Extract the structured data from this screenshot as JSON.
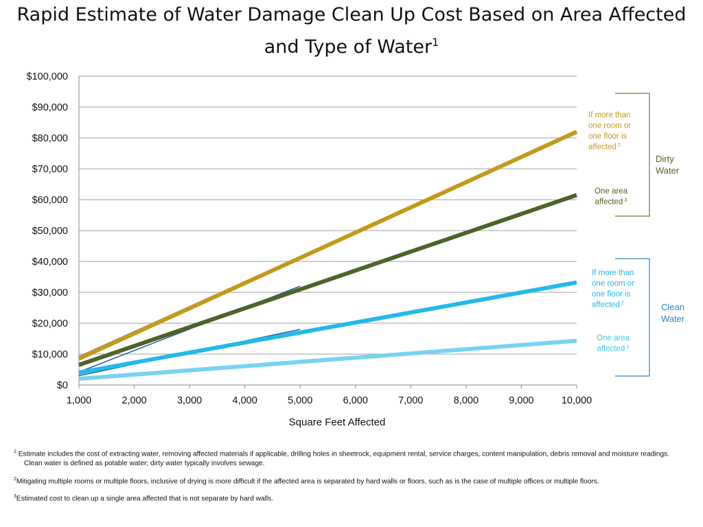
{
  "title": {
    "text": "Rapid Estimate of Water Damage Clean Up Cost Based on Area Affected and Type of Water",
    "sup": "1"
  },
  "annotations": {
    "dirty_multi": {
      "text": [
        "If more than",
        "one room or",
        "one floor is",
        "affected"
      ],
      "sup": "2"
    },
    "dirty_single": {
      "text": [
        "One area",
        "affected"
      ],
      "sup": "3"
    },
    "clean_multi": {
      "text": [
        "If more than",
        "one room or",
        "one floor is",
        "affected"
      ],
      "sup": "2"
    },
    "clean_single": {
      "text": [
        "One area",
        "affected"
      ],
      "sup": "3"
    },
    "dirty_group": [
      "Dirty",
      "Water"
    ],
    "clean_group": [
      "Clean",
      "Water"
    ]
  },
  "footnotes": [
    {
      "sup": "1",
      "lines": [
        " Estimate includes the cost of extracting water, removing affected materials if applicable, drilling holes in sheetrock, equipment rental, service charges, content manipulation, debris removal and moisture readings.",
        "Clean water is defined as potable water; dirty water  typically involves sewage."
      ]
    },
    {
      "sup": "2",
      "lines": [
        "Mitigating multiple rooms or multiple floors, inclusive of drying is more difficult if the affected area is separated by hard walls or floors, such as is  the case of multiple offices or multiple floors."
      ]
    },
    {
      "sup": "3",
      "lines": [
        "Estimated cost to clean up a single area affected that is not separate by hard walls."
      ]
    }
  ],
  "colors": {
    "dirty_multi": "#c49a1c",
    "dirty_single": "#4f6228",
    "clean_multi": "#23b9ea",
    "clean_single": "#78d3f1",
    "dark_blue": "#1f5fa8",
    "grey": "#8f8f8f",
    "dirty_bracket": "#6b7d33",
    "clean_bracket": "#2e86c8",
    "clean_single_text": "#3cc6e8"
  },
  "chart_data": {
    "type": "line",
    "title": "",
    "xlabel": "Square Feet Affected",
    "ylabel": "",
    "xlim": [
      1000,
      10000
    ],
    "ylim": [
      0,
      100000
    ],
    "x_ticks": [
      1000,
      2000,
      3000,
      4000,
      5000,
      6000,
      7000,
      8000,
      9000,
      10000
    ],
    "x_tick_labels": [
      "1,000",
      "2,000",
      "3,000",
      "4,000",
      "5,000",
      "6,000",
      "7,000",
      "8,000",
      "9,000",
      "10,000"
    ],
    "y_ticks": [
      0,
      10000,
      20000,
      30000,
      40000,
      50000,
      60000,
      70000,
      80000,
      90000,
      100000
    ],
    "y_tick_labels": [
      "$0",
      "$10,000",
      "$20,000",
      "$30,000",
      "$40,000",
      "$50,000",
      "$60,000",
      "$70,000",
      "$80,000",
      "$90,000",
      "$100,000"
    ],
    "grid": "horizontal",
    "series": [
      {
        "x": [
          1000,
          5000
        ],
        "y": [
          9200,
          41500
        ],
        "color": "#8f8f8f",
        "width": 2
      },
      {
        "x": [
          1000,
          5000
        ],
        "y": [
          4200,
          32000
        ],
        "color": "#1f5fa8",
        "width": 1.5
      },
      {
        "x": [
          1000,
          5000
        ],
        "y": [
          3000,
          18000
        ],
        "color": "#1f5fa8",
        "width": 1.5
      },
      {
        "x": [
          1000,
          5000
        ],
        "y": [
          1800,
          7500
        ],
        "color": "#1f5fa8",
        "width": 1.5
      },
      {
        "x": [
          1000,
          10000
        ],
        "y": [
          8500,
          82000
        ],
        "color": "#c49a1c",
        "width": 6
      },
      {
        "x": [
          1000,
          10000
        ],
        "y": [
          6500,
          61500
        ],
        "color": "#4f6228",
        "width": 6
      },
      {
        "x": [
          1000,
          10000
        ],
        "y": [
          4000,
          33200
        ],
        "color": "#23b9ea",
        "width": 6
      },
      {
        "x": [
          1000,
          10000
        ],
        "y": [
          2000,
          14300
        ],
        "color": "#78d3f1",
        "width": 6
      }
    ]
  }
}
